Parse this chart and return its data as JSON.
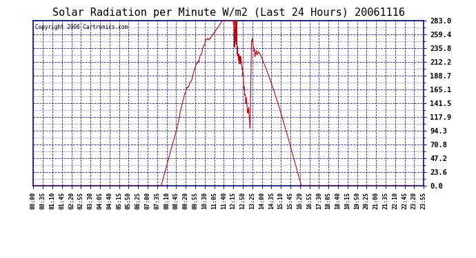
{
  "title": "Solar Radiation per Minute W/m2 (Last 24 Hours) 20061116",
  "copyright_text": "Copyright 2006 Cartronics.com",
  "background_color": "#ffffff",
  "plot_bg_color": "#ffffff",
  "line_color": "#cc0000",
  "grid_color": "#0000bb",
  "axis_color": "#0000bb",
  "tick_label_color": "#000000",
  "title_color": "#000000",
  "y_ticks": [
    0.0,
    23.6,
    47.2,
    70.8,
    94.3,
    117.9,
    141.5,
    165.1,
    188.7,
    212.2,
    235.8,
    259.4,
    283.0
  ],
  "ylim": [
    0.0,
    283.0
  ],
  "xlim_minutes": [
    0,
    1435
  ],
  "sun_rise_min": 470,
  "sun_set_min": 985,
  "peak_min": 737,
  "peak_val": 283.0
}
